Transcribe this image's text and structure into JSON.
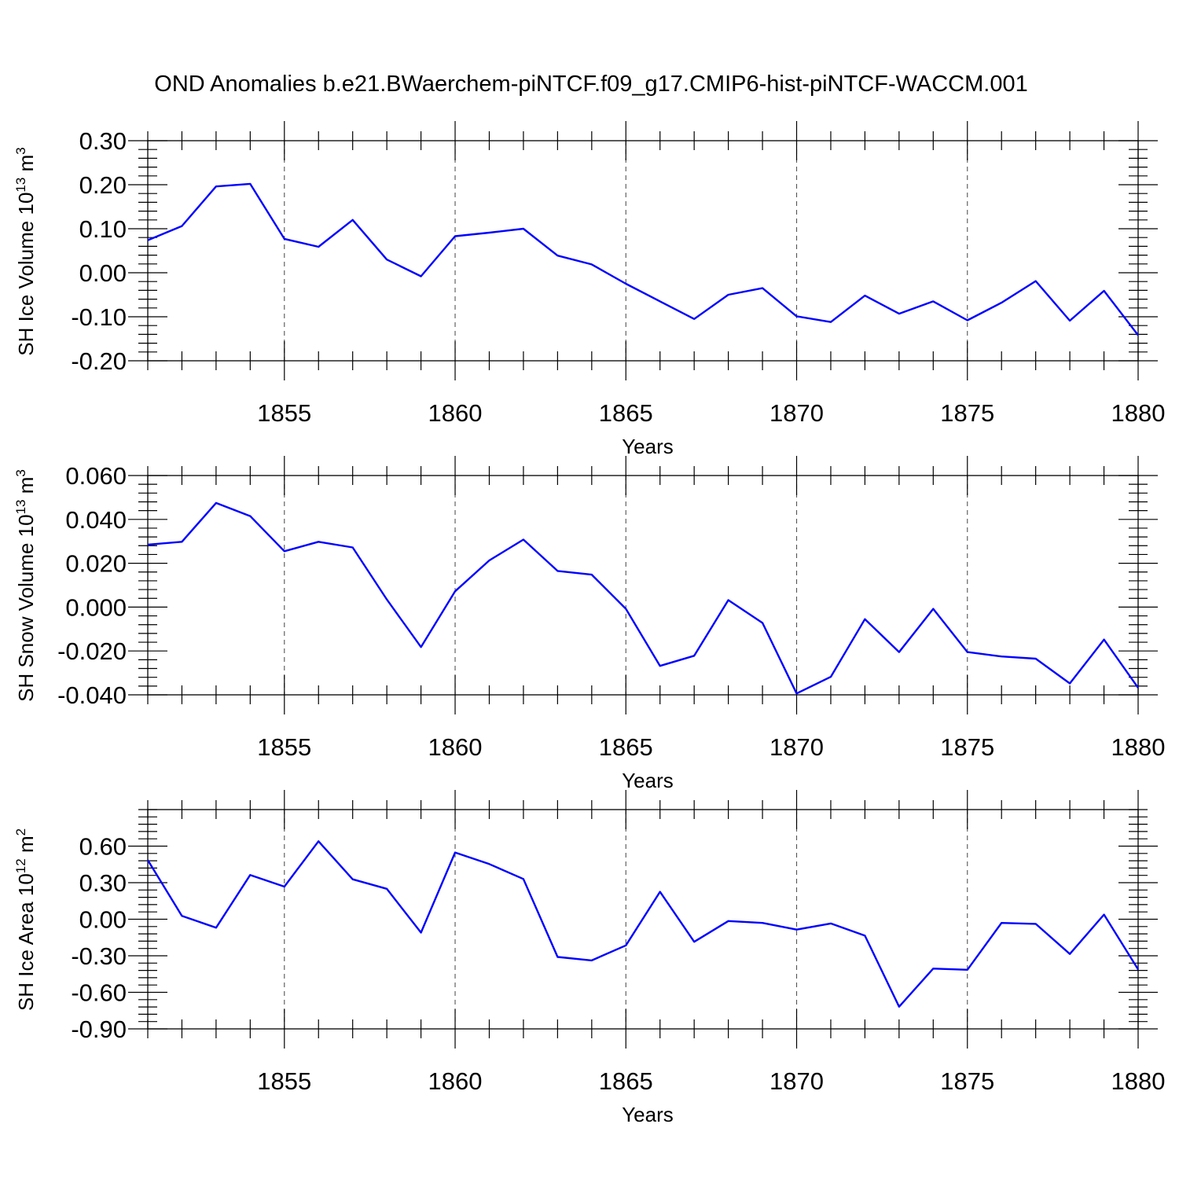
{
  "title": "OND Anomalies b.e21.BWaerchem-piNTCF.f09_g17.CMIP6-hist-piNTCF-WACCM.001",
  "line_color": "#0000ff",
  "chart_data": [
    {
      "type": "line",
      "title": "OND Anomalies b.e21.BWaerchem-piNTCF.f09_g17.CMIP6-hist-piNTCF-WACCM.001",
      "ylabel": {
        "main": "SH Ice Volume 10",
        "exp1": "13",
        "mid": " m",
        "exp2": "3"
      },
      "xlabel": "Years",
      "xlim": [
        1851,
        1880
      ],
      "ylim": [
        -0.2,
        0.3
      ],
      "xticks": [
        1855,
        1860,
        1865,
        1870,
        1875,
        1880
      ],
      "xtick_labels": [
        "1855",
        "1860",
        "1865",
        "1870",
        "1875",
        "1880"
      ],
      "yticks": [
        -0.2,
        -0.1,
        0.0,
        0.1,
        0.2,
        0.3
      ],
      "ytick_labels": [
        "-0.20",
        "-0.10",
        "0.00",
        "0.10",
        "0.20",
        "0.30"
      ],
      "grid_x": true,
      "series": [
        {
          "name": "SH Ice Volume",
          "x": [
            1851,
            1852,
            1853,
            1854,
            1855,
            1856,
            1857,
            1858,
            1859,
            1860,
            1861,
            1862,
            1863,
            1864,
            1865,
            1866,
            1867,
            1868,
            1869,
            1870,
            1871,
            1872,
            1873,
            1874,
            1875,
            1876,
            1877,
            1878,
            1879,
            1880
          ],
          "values": [
            0.074,
            0.106,
            0.196,
            0.202,
            0.077,
            0.059,
            0.12,
            0.03,
            -0.008,
            0.083,
            0.091,
            0.1,
            0.039,
            0.019,
            -0.025,
            -0.065,
            -0.105,
            -0.05,
            -0.035,
            -0.099,
            -0.112,
            -0.052,
            -0.093,
            -0.065,
            -0.108,
            -0.068,
            -0.019,
            -0.109,
            -0.041,
            -0.142
          ]
        }
      ]
    },
    {
      "type": "line",
      "ylabel": {
        "main": "SH Snow Volume 10",
        "exp1": "13",
        "mid": " m",
        "exp2": "3"
      },
      "xlabel": "Years",
      "xlim": [
        1851,
        1880
      ],
      "ylim": [
        -0.04,
        0.06
      ],
      "xticks": [
        1855,
        1860,
        1865,
        1870,
        1875,
        1880
      ],
      "xtick_labels": [
        "1855",
        "1860",
        "1865",
        "1870",
        "1875",
        "1880"
      ],
      "yticks": [
        -0.04,
        -0.02,
        0.0,
        0.02,
        0.04,
        0.06
      ],
      "ytick_labels": [
        "-0.040",
        "-0.020",
        "0.000",
        "0.020",
        "0.040",
        "0.060"
      ],
      "grid_x": true,
      "series": [
        {
          "name": "SH Snow Volume",
          "x": [
            1851,
            1852,
            1853,
            1854,
            1855,
            1856,
            1857,
            1858,
            1859,
            1860,
            1861,
            1862,
            1863,
            1864,
            1865,
            1866,
            1867,
            1868,
            1869,
            1870,
            1871,
            1872,
            1873,
            1874,
            1875,
            1876,
            1877,
            1878,
            1879,
            1880
          ],
          "values": [
            0.0285,
            0.0298,
            0.0475,
            0.0415,
            0.0255,
            0.0298,
            0.0272,
            0.0035,
            -0.0182,
            0.0072,
            0.0213,
            0.0308,
            0.0165,
            0.0148,
            -0.0008,
            -0.0268,
            -0.0222,
            0.0032,
            -0.0072,
            -0.0394,
            -0.0318,
            -0.0055,
            -0.0205,
            -0.0008,
            -0.0205,
            -0.0225,
            -0.0235,
            -0.0348,
            -0.0148,
            -0.0368
          ]
        }
      ]
    },
    {
      "type": "line",
      "ylabel": {
        "main": "SH Ice Area 10",
        "exp1": "12",
        "mid": " m",
        "exp2": "2"
      },
      "xlabel": "Years",
      "xlim": [
        1851,
        1880
      ],
      "ylim": [
        -0.9,
        0.9
      ],
      "xticks": [
        1855,
        1860,
        1865,
        1870,
        1875,
        1880
      ],
      "xtick_labels": [
        "1855",
        "1860",
        "1865",
        "1870",
        "1875",
        "1880"
      ],
      "yticks": [
        -0.9,
        -0.6,
        -0.3,
        0.0,
        0.3,
        0.6
      ],
      "ytick_labels": [
        "-0.90",
        "-0.60",
        "-0.30",
        "0.00",
        "0.30",
        "0.60"
      ],
      "grid_x": true,
      "series": [
        {
          "name": "SH Ice Area",
          "x": [
            1851,
            1852,
            1853,
            1854,
            1855,
            1856,
            1857,
            1858,
            1859,
            1860,
            1861,
            1862,
            1863,
            1864,
            1865,
            1866,
            1867,
            1868,
            1869,
            1870,
            1871,
            1872,
            1873,
            1874,
            1875,
            1876,
            1877,
            1878,
            1879,
            1880
          ],
          "values": [
            0.485,
            0.028,
            -0.07,
            0.363,
            0.268,
            0.64,
            0.328,
            0.25,
            -0.11,
            0.548,
            0.453,
            0.33,
            -0.31,
            -0.338,
            -0.215,
            0.225,
            -0.185,
            -0.015,
            -0.03,
            -0.085,
            -0.035,
            -0.135,
            -0.718,
            -0.405,
            -0.415,
            -0.03,
            -0.038,
            -0.285,
            0.038,
            -0.412
          ]
        }
      ]
    }
  ]
}
